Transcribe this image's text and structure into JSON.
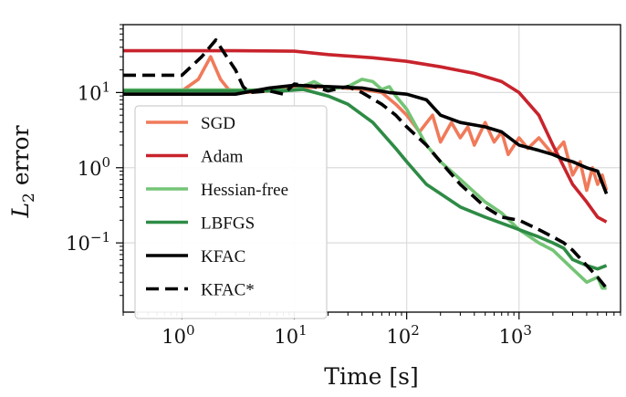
{
  "chart_data": {
    "type": "line",
    "xlabel": "Time [s]",
    "ylabel": "L2 error",
    "xscale": "log",
    "yscale": "log",
    "xlim": [
      0.3,
      8000
    ],
    "ylim": [
      0.012,
      80
    ],
    "xticks": [
      {
        "value": 1,
        "base": "10",
        "exp": "0"
      },
      {
        "value": 10,
        "base": "10",
        "exp": "1"
      },
      {
        "value": 100,
        "base": "10",
        "exp": "2"
      },
      {
        "value": 1000,
        "base": "10",
        "exp": "3"
      }
    ],
    "yticks": [
      {
        "value": 0.1,
        "base": "10",
        "exp": "−1"
      },
      {
        "value": 1,
        "base": "10",
        "exp": "0"
      },
      {
        "value": 10,
        "base": "10",
        "exp": "1"
      }
    ],
    "grid": true,
    "legend_position": "lower-left",
    "series": [
      {
        "name": "SGD",
        "color": "#f07a5a",
        "dash": false,
        "points": [
          [
            0.3,
            10.5
          ],
          [
            1,
            10.5
          ],
          [
            1.4,
            15
          ],
          [
            1.8,
            30
          ],
          [
            2.2,
            15
          ],
          [
            2.6,
            11
          ],
          [
            3.5,
            10
          ],
          [
            6,
            10.5
          ],
          [
            10,
            11.5
          ],
          [
            20,
            12
          ],
          [
            40,
            11
          ],
          [
            60,
            10
          ],
          [
            80,
            7
          ],
          [
            100,
            5
          ],
          [
            130,
            3
          ],
          [
            170,
            5
          ],
          [
            200,
            2.2
          ],
          [
            250,
            4
          ],
          [
            300,
            2.5
          ],
          [
            350,
            3.5
          ],
          [
            400,
            2
          ],
          [
            500,
            4
          ],
          [
            600,
            2.2
          ],
          [
            700,
            3
          ],
          [
            800,
            1.5
          ],
          [
            1000,
            2.5
          ],
          [
            1200,
            1.8
          ],
          [
            1500,
            2.5
          ],
          [
            2000,
            1.5
          ],
          [
            2500,
            2.2
          ],
          [
            3000,
            0.8
          ],
          [
            3500,
            1.2
          ],
          [
            4000,
            0.5
          ],
          [
            4500,
            1.0
          ],
          [
            5000,
            0.6
          ],
          [
            5500,
            0.8
          ],
          [
            6000,
            0.5
          ]
        ]
      },
      {
        "name": "Adam",
        "color": "#c8232c",
        "dash": false,
        "points": [
          [
            0.3,
            36
          ],
          [
            3,
            36
          ],
          [
            10,
            35.5
          ],
          [
            20,
            32
          ],
          [
            50,
            29
          ],
          [
            100,
            26
          ],
          [
            200,
            22
          ],
          [
            400,
            18
          ],
          [
            600,
            15
          ],
          [
            700,
            14
          ],
          [
            1000,
            10
          ],
          [
            1500,
            5
          ],
          [
            2000,
            2
          ],
          [
            3000,
            0.6
          ],
          [
            4000,
            0.35
          ],
          [
            5000,
            0.22
          ],
          [
            6000,
            0.19
          ]
        ]
      },
      {
        "name": "Hessian-free",
        "color": "#74c476",
        "dash": false,
        "points": [
          [
            0.3,
            10.8
          ],
          [
            10,
            10.8
          ],
          [
            15,
            14
          ],
          [
            20,
            11
          ],
          [
            30,
            12
          ],
          [
            40,
            15
          ],
          [
            50,
            14
          ],
          [
            60,
            11
          ],
          [
            70,
            12
          ],
          [
            80,
            9
          ],
          [
            100,
            6
          ],
          [
            150,
            2
          ],
          [
            200,
            1.2
          ],
          [
            300,
            0.7
          ],
          [
            500,
            0.35
          ],
          [
            700,
            0.25
          ],
          [
            1000,
            0.15
          ],
          [
            1500,
            0.1
          ],
          [
            2000,
            0.08
          ],
          [
            3000,
            0.045
          ],
          [
            4000,
            0.03
          ],
          [
            5000,
            0.035
          ],
          [
            5500,
            0.025
          ],
          [
            6000,
            0.025
          ]
        ]
      },
      {
        "name": "LBFGS",
        "color": "#2e8b45",
        "dash": false,
        "points": [
          [
            0.3,
            10.5
          ],
          [
            8,
            10.5
          ],
          [
            12,
            11
          ],
          [
            20,
            9
          ],
          [
            30,
            7
          ],
          [
            50,
            4
          ],
          [
            80,
            1.8
          ],
          [
            100,
            1.2
          ],
          [
            150,
            0.6
          ],
          [
            200,
            0.45
          ],
          [
            300,
            0.3
          ],
          [
            500,
            0.22
          ],
          [
            800,
            0.17
          ],
          [
            1000,
            0.15
          ],
          [
            1500,
            0.12
          ],
          [
            2000,
            0.1
          ],
          [
            2500,
            0.085
          ],
          [
            3000,
            0.06
          ],
          [
            4000,
            0.05
          ],
          [
            5000,
            0.045
          ],
          [
            6000,
            0.05
          ]
        ]
      },
      {
        "name": "KFAC",
        "color": "#000000",
        "dash": false,
        "points": [
          [
            0.3,
            9.5
          ],
          [
            3,
            9.5
          ],
          [
            6,
            11.5
          ],
          [
            10,
            12.5
          ],
          [
            20,
            12
          ],
          [
            40,
            11.5
          ],
          [
            70,
            10
          ],
          [
            100,
            9.5
          ],
          [
            150,
            8
          ],
          [
            200,
            5
          ],
          [
            300,
            4
          ],
          [
            500,
            3.5
          ],
          [
            700,
            3
          ],
          [
            1000,
            2
          ],
          [
            1500,
            1.7
          ],
          [
            2000,
            1.5
          ],
          [
            2500,
            1.3
          ],
          [
            3000,
            1.2
          ],
          [
            4000,
            1.0
          ],
          [
            5000,
            0.9
          ],
          [
            6000,
            0.45
          ]
        ]
      },
      {
        "name": "KFAC*",
        "color": "#000000",
        "dash": true,
        "points": [
          [
            0.3,
            17
          ],
          [
            1,
            17
          ],
          [
            1.5,
            30
          ],
          [
            2,
            50
          ],
          [
            2.5,
            30
          ],
          [
            3,
            20
          ],
          [
            3.5,
            12
          ],
          [
            4,
            10
          ],
          [
            6,
            10.5
          ],
          [
            8,
            9.5
          ],
          [
            10,
            13
          ],
          [
            15,
            12
          ],
          [
            20,
            10.5
          ],
          [
            30,
            12
          ],
          [
            40,
            10
          ],
          [
            60,
            7
          ],
          [
            80,
            5
          ],
          [
            100,
            3.5
          ],
          [
            150,
            2
          ],
          [
            200,
            1.2
          ],
          [
            300,
            0.6
          ],
          [
            500,
            0.3
          ],
          [
            700,
            0.22
          ],
          [
            1000,
            0.2
          ],
          [
            1500,
            0.15
          ],
          [
            2000,
            0.12
          ],
          [
            2500,
            0.1
          ],
          [
            3000,
            0.08
          ],
          [
            4000,
            0.05
          ],
          [
            5000,
            0.035
          ],
          [
            6000,
            0.025
          ]
        ]
      }
    ]
  }
}
